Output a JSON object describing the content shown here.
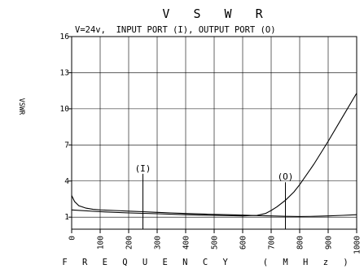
{
  "chart_data": {
    "type": "line",
    "title": "V S W R",
    "subtitle": "V=24v,  INPUT PORT (I), OUTPUT PORT (O)",
    "xlabel": "F R E Q U E N C Y   ( M H z )",
    "ylabel": "VSWR",
    "xlim": [
      0,
      1000
    ],
    "ylim": [
      0,
      16
    ],
    "x_ticks": [
      0,
      100,
      200,
      300,
      400,
      500,
      600,
      700,
      800,
      900,
      1000
    ],
    "y_ticks": [
      1,
      4,
      7,
      10,
      13,
      16
    ],
    "grid": true,
    "series": [
      {
        "name": "(I)",
        "x": [
          0,
          10,
          25,
          50,
          75,
          100,
          150,
          200,
          250,
          300,
          350,
          400,
          450,
          500,
          550,
          600,
          650,
          700,
          750,
          800,
          850,
          900,
          950,
          1000
        ],
        "y": [
          2.8,
          2.3,
          1.95,
          1.75,
          1.65,
          1.6,
          1.55,
          1.5,
          1.45,
          1.4,
          1.35,
          1.3,
          1.27,
          1.23,
          1.2,
          1.17,
          1.13,
          1.1,
          1.07,
          1.05,
          1.07,
          1.1,
          1.15,
          1.2
        ]
      },
      {
        "name": "(O)",
        "x": [
          0,
          100,
          200,
          300,
          400,
          500,
          600,
          650,
          680,
          700,
          720,
          750,
          780,
          800,
          850,
          900,
          950,
          1000
        ],
        "y": [
          1.6,
          1.45,
          1.35,
          1.28,
          1.2,
          1.15,
          1.1,
          1.15,
          1.3,
          1.55,
          1.85,
          2.4,
          3.1,
          3.7,
          5.4,
          7.3,
          9.3,
          11.3
        ]
      }
    ],
    "annotations": [
      {
        "text": "(I)",
        "x": 250,
        "y_top": 4.6
      },
      {
        "text": "(O)",
        "x": 750,
        "y_top": 3.9
      }
    ]
  }
}
